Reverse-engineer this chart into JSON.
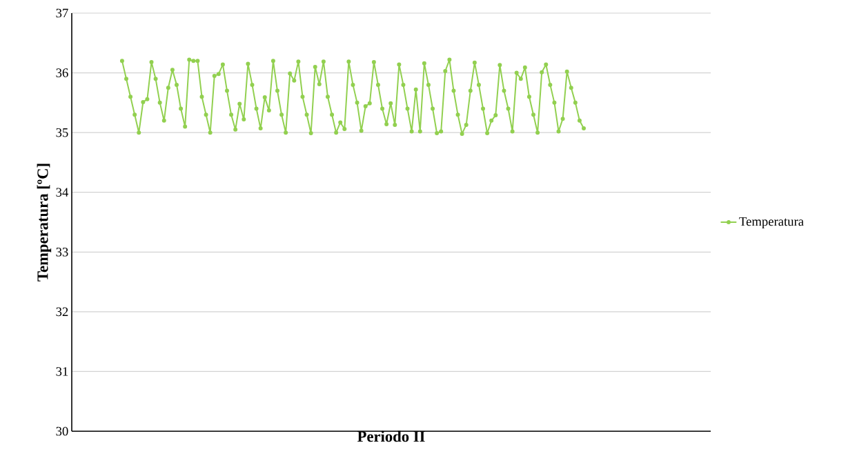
{
  "chart_data": {
    "type": "line",
    "xlabel": "Periodo II",
    "ylabel": "Temperatura [ºC]",
    "categories": [
      null,
      null,
      null,
      null,
      null,
      null,
      null,
      null,
      null,
      null,
      null,
      null,
      null,
      null,
      null,
      null,
      null,
      null,
      null,
      null,
      null,
      null,
      null,
      null,
      null,
      null,
      null,
      null,
      null,
      null,
      null,
      null,
      null,
      null,
      null,
      null,
      null,
      null,
      null,
      null,
      null,
      null,
      null,
      null,
      null,
      null,
      null,
      null,
      null,
      null,
      null,
      null,
      null,
      null,
      null,
      null,
      null,
      null,
      null,
      null,
      null,
      null,
      null,
      null,
      null,
      null,
      null,
      null,
      null,
      null,
      null,
      null,
      null,
      null,
      null,
      null,
      null,
      null,
      null,
      null,
      null,
      null,
      null,
      null,
      null,
      null,
      null,
      null,
      null,
      null,
      null,
      null,
      null,
      null,
      null,
      null,
      null,
      null,
      null,
      null,
      null,
      null,
      null,
      null,
      null,
      null,
      null,
      null,
      null,
      null,
      null
    ],
    "ylim": [
      30,
      37
    ],
    "yticks": [
      30,
      31,
      32,
      33,
      34,
      35,
      36,
      37
    ],
    "grid": "y",
    "legend": "right",
    "marker": "circle",
    "line_style": "solid",
    "tick_labels": "y",
    "series": [
      {
        "name": "Temperatura",
        "color": "#92d050",
        "values": [
          36.2,
          35.9,
          35.6,
          35.3,
          35.0,
          35.51,
          35.56,
          36.18,
          35.9,
          35.5,
          35.2,
          35.75,
          36.05,
          35.8,
          35.4,
          35.1,
          36.22,
          36.2,
          36.2,
          35.6,
          35.3,
          35.0,
          35.95,
          35.98,
          36.14,
          35.7,
          35.3,
          35.05,
          35.48,
          35.22,
          36.15,
          35.8,
          35.4,
          35.07,
          35.59,
          35.37,
          36.2,
          35.7,
          35.3,
          35.0,
          35.99,
          35.87,
          36.19,
          35.6,
          35.3,
          34.99,
          36.1,
          35.81,
          36.19,
          35.6,
          35.3,
          35.0,
          35.17,
          35.06,
          36.19,
          35.8,
          35.5,
          35.03,
          35.44,
          35.49,
          36.18,
          35.8,
          35.4,
          35.14,
          35.49,
          35.13,
          36.14,
          35.8,
          35.4,
          35.02,
          35.72,
          35.02,
          36.16,
          35.8,
          35.4,
          34.99,
          35.02,
          36.03,
          36.22,
          35.7,
          35.3,
          34.98,
          35.13,
          35.7,
          36.17,
          35.8,
          35.4,
          34.99,
          35.2,
          35.29,
          36.13,
          35.7,
          35.4,
          35.02,
          36.0,
          35.9,
          36.09,
          35.6,
          35.3,
          35.0,
          36.01,
          36.14,
          35.8,
          35.5,
          35.02,
          35.23,
          36.02,
          35.75,
          35.5,
          35.2,
          35.07
        ]
      }
    ]
  }
}
